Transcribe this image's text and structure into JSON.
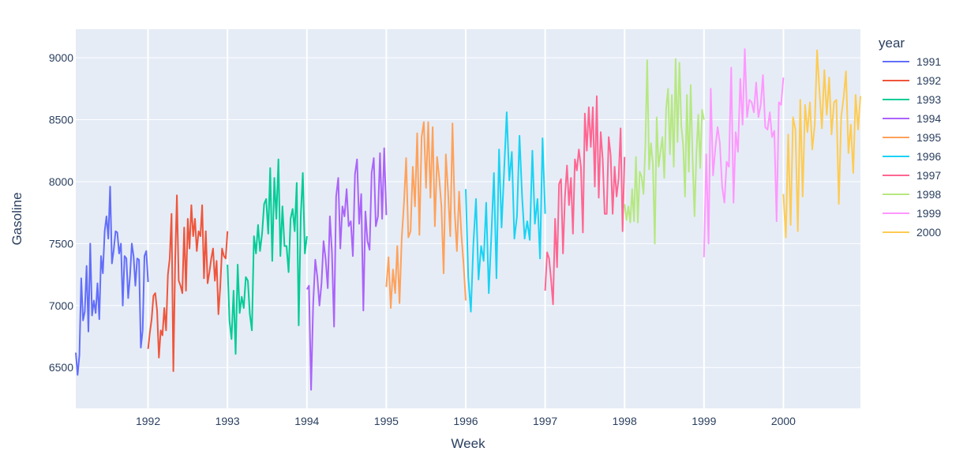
{
  "chart_data": {
    "type": "line",
    "xlabel": "Week",
    "ylabel": "Gasoline",
    "legend_title": "year",
    "legend_position": "right",
    "grid": true,
    "xlim": [
      1991.09,
      2000.97
    ],
    "ylim": [
      6170,
      9230
    ],
    "x_ticks": [
      1992,
      1993,
      1994,
      1995,
      1996,
      1997,
      1998,
      1999,
      2000
    ],
    "y_ticks": [
      6500,
      7000,
      7500,
      8000,
      8500,
      9000
    ],
    "colors": {
      "plot_background": "#e5ecf6",
      "grid": "#ffffff",
      "text": "#2a3f5f"
    },
    "series": [
      {
        "name": "1991",
        "color": "#636efa"
      },
      {
        "name": "1992",
        "color": "#EF553B"
      },
      {
        "name": "1993",
        "color": "#00cc96"
      },
      {
        "name": "1994",
        "color": "#ab63fa"
      },
      {
        "name": "1995",
        "color": "#FFA15A"
      },
      {
        "name": "1996",
        "color": "#19d3f3"
      },
      {
        "name": "1997",
        "color": "#FF6692"
      },
      {
        "name": "1998",
        "color": "#B6E880"
      },
      {
        "name": "1999",
        "color": "#FF97FF"
      },
      {
        "name": "2000",
        "color": "#FECB52"
      }
    ],
    "anchor_points": [
      [
        [
          6620,
          6440,
          6600,
          7220,
          6880,
          6950,
          7320,
          6790,
          7500,
          6920,
          7040,
          6940,
          7180,
          6890,
          7400,
          7260,
          7600,
          7720,
          7540,
          7960,
          7340,
          7450,
          7600,
          7590,
          7420,
          7500,
          7000,
          7400,
          7380,
          7060,
          7240,
          7500,
          7400,
          7160,
          7380,
          7370,
          6660,
          6800,
          7400,
          7440,
          7190
        ]
      ],
      [
        [
          6650,
          6780,
          6890,
          7080,
          7100,
          6960,
          6580,
          6800,
          6760,
          6980,
          6800,
          7250,
          7380,
          7740,
          6470,
          7360,
          7890,
          7200,
          7160,
          7100,
          7630,
          7120,
          7700,
          7460,
          7810,
          7560,
          7700,
          7440,
          7600,
          7560,
          7810,
          7220,
          7600,
          7180,
          7270,
          7380,
          7460,
          7200,
          7360,
          6930,
          7150,
          7460,
          7400,
          7380,
          7600
        ]
      ],
      [
        [
          7330,
          6880,
          6730,
          7120,
          6610,
          7330,
          6940,
          7070,
          6980,
          7230,
          7200,
          6930,
          6800,
          7560,
          7420,
          7650,
          7440,
          7580,
          7820,
          7860,
          7580,
          8110,
          7360,
          8030,
          7700,
          8180,
          7400,
          7800,
          7480,
          7480,
          7270,
          7700,
          7780,
          7600,
          7990,
          6840,
          7720,
          8070,
          7420,
          7560
        ]
      ],
      [
        [
          7130,
          7160,
          6320,
          7010,
          7370,
          7230,
          7000,
          7180,
          7520,
          7370,
          7140,
          7720,
          7430,
          6830,
          7880,
          8030,
          7460,
          7800,
          7720,
          7940,
          7640,
          7680,
          7400,
          8060,
          8180,
          7660,
          7900,
          6960,
          7760,
          7520,
          7450,
          8070,
          8190,
          7640,
          7720,
          8230,
          7700,
          8270,
          7730
        ]
      ],
      [
        [
          7150,
          7390,
          6980,
          7290,
          7100,
          7480,
          7020,
          7540,
          7820,
          8190,
          7550,
          7600,
          8120,
          7800,
          8390,
          7570,
          8360,
          8480,
          7950,
          8480,
          7870,
          8440,
          7640,
          8200,
          8030,
          7800,
          7260,
          8220,
          7920,
          7560,
          8470,
          7760,
          7440,
          7920,
          7580,
          7340,
          7040
        ]
      ],
      [
        [
          7940,
          7230,
          6950,
          7500,
          7860,
          7210,
          7480,
          7360,
          7830,
          7100,
          7560,
          8070,
          7220,
          8260,
          7630,
          8100,
          8560,
          8010,
          8240,
          7540,
          7720,
          8370,
          7880,
          7540,
          7680,
          7530,
          8250,
          7660,
          7860,
          7380,
          8350,
          7740
        ]
      ],
      [
        [
          7120,
          7430,
          7380,
          7210,
          7010,
          7700,
          7310,
          7980,
          8020,
          7420,
          7880,
          8130,
          7810,
          8030,
          7580,
          8180,
          8090,
          8260,
          8120,
          7590,
          8550,
          8250,
          8600,
          8280,
          8600,
          7960,
          8690,
          7870,
          8400,
          8180,
          7740,
          7740,
          8360,
          8210,
          7740,
          8120,
          7880,
          8030,
          8430,
          7600,
          8200
        ]
      ],
      [
        [
          7820,
          7690,
          7800,
          7670,
          7940,
          7680,
          8200,
          7670,
          8080,
          8040,
          7900,
          8280,
          8980,
          8100,
          8310,
          8140,
          7500,
          8520,
          8120,
          8240,
          8360,
          8030,
          8590,
          8750,
          8220,
          8700,
          8120,
          8990,
          8320,
          8960,
          8450,
          8290,
          7880,
          8700,
          8080,
          8780,
          8180,
          7720,
          8220,
          8540,
          8110,
          8580,
          8500
        ]
      ],
      [
        [
          7390,
          8220,
          7500,
          8750,
          8050,
          8270,
          8440,
          8310,
          7960,
          7830,
          8160,
          8120,
          8920,
          7830,
          8400,
          8240,
          8830,
          8460,
          9070,
          8520,
          8660,
          8640,
          8560,
          8800,
          8520,
          8620,
          8860,
          8440,
          8420,
          8560,
          8360,
          8410,
          7680,
          8640,
          8620,
          8840
        ]
      ],
      [
        [
          7900,
          7550,
          8380,
          7650,
          8520,
          8420,
          7600,
          8660,
          7880,
          8620,
          8400,
          8640,
          8260,
          8460,
          9060,
          8720,
          8430,
          8900,
          8540,
          8840,
          8380,
          8640,
          8660,
          7820,
          8520,
          8680,
          8890,
          8230,
          8460,
          8070,
          8700,
          8420,
          8690
        ]
      ]
    ]
  }
}
